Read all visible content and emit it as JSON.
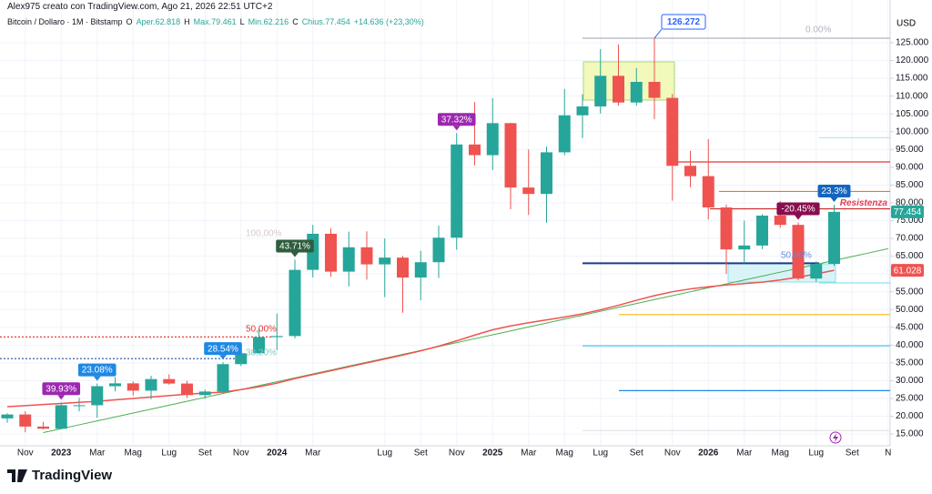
{
  "chart_data": {
    "type": "candlestick",
    "title": "Alex975 creato con TradingView.com, Ago 21, 2026 22:51 UTC+2",
    "symbol": "Bitcoin / Dollaro · 1M · Bitstamp",
    "legend_fields": [
      "O",
      "Aper.62.818",
      "H",
      "Max.79.461",
      "L",
      "Min.62.216",
      "C",
      "Chius.77.454",
      "+14.636 (+23,30%)"
    ],
    "currency": "USD",
    "brand": "TradingView",
    "categories": [
      null,
      "Nov",
      null,
      "2023",
      null,
      "Mar",
      null,
      "Mag",
      null,
      "Lug",
      null,
      "Set",
      null,
      "Nov",
      null,
      "2024",
      null,
      "Mar",
      null,
      null,
      null,
      "Lug",
      null,
      "Set",
      null,
      "Nov",
      null,
      "2025",
      null,
      "Mar",
      null,
      "Mag",
      null,
      "Lug",
      null,
      "Set",
      null,
      "Nov",
      null,
      "2026",
      null,
      "Mar",
      null,
      "Mag",
      null,
      "Lug",
      null,
      "Set",
      null,
      "N"
    ],
    "year_labels": [
      "2023",
      "2024",
      "2025",
      "2026"
    ],
    "open": [
      19400,
      20500,
      17100,
      16500,
      23100,
      23100,
      28450,
      29250,
      27200,
      30450,
      29200,
      25950,
      26950,
      34650,
      37700,
      42250,
      42550,
      61150,
      71300,
      60650,
      67500,
      62700,
      64600,
      59000,
      63300,
      70200,
      96400,
      93400,
      102400,
      84300,
      82500,
      94200,
      104600,
      107100,
      115700,
      108200,
      114000,
      109500,
      90400,
      87500,
      78700,
      66900,
      68000,
      76400,
      73800,
      58700,
      62818,
      null,
      null,
      null
    ],
    "high": [
      20800,
      21400,
      18400,
      23900,
      25200,
      29200,
      31000,
      29800,
      31400,
      31800,
      30000,
      27500,
      35200,
      38400,
      44700,
      48900,
      64000,
      73800,
      72800,
      71900,
      72000,
      70000,
      65100,
      66500,
      73600,
      99600,
      108300,
      109400,
      102500,
      95000,
      95800,
      112000,
      110500,
      123200,
      124500,
      117900,
      126272,
      110600,
      94600,
      97900,
      79500,
      75000,
      76800,
      80500,
      74500,
      63500,
      79461,
      null,
      null,
      null
    ],
    "low": [
      18200,
      15500,
      16300,
      16500,
      21400,
      19600,
      27000,
      25800,
      24800,
      28900,
      25200,
      24900,
      26500,
      34100,
      37600,
      38500,
      41900,
      59000,
      59200,
      56500,
      58400,
      53500,
      49100,
      52600,
      58900,
      66800,
      90500,
      89200,
      78200,
      76600,
      74400,
      93400,
      98200,
      105100,
      107300,
      107300,
      103500,
      80600,
      84400,
      75300,
      60000,
      63000,
      67000,
      73000,
      58200,
      57800,
      62216,
      null,
      null,
      null
    ],
    "close": [
      20500,
      17100,
      16500,
      23100,
      23100,
      28450,
      29250,
      27200,
      30450,
      29200,
      25950,
      26950,
      34650,
      37700,
      42250,
      42550,
      61150,
      71300,
      60650,
      67500,
      62700,
      64600,
      59000,
      63300,
      70200,
      96400,
      93400,
      102400,
      84300,
      82500,
      94200,
      104600,
      107100,
      115700,
      108200,
      114000,
      109500,
      90400,
      87500,
      78700,
      66900,
      68000,
      76400,
      73800,
      58700,
      62818,
      77454,
      null,
      null,
      null
    ],
    "up_color": "#26a69a",
    "down_color": "#ef5350",
    "ma": {
      "color": "#ef5350",
      "values": [
        22700,
        23000,
        23300,
        23600,
        23900,
        24200,
        24600,
        25000,
        25400,
        25800,
        26200,
        26500,
        26800,
        27500,
        28300,
        29300,
        30600,
        31700,
        32800,
        33900,
        35000,
        36100,
        37200,
        38400,
        39700,
        41200,
        42800,
        44300,
        45400,
        46300,
        47100,
        47900,
        48800,
        49900,
        51200,
        52600,
        53900,
        55000,
        55800,
        56400,
        56900,
        57300,
        57700,
        58300,
        59100,
        60000,
        61028,
        null,
        null,
        null
      ]
    },
    "trend": {
      "color": "#4caf50",
      "values": [
        null,
        null,
        15400,
        16500,
        17600,
        18700,
        19800,
        20900,
        22000,
        23100,
        24200,
        25300,
        26400,
        27500,
        28600,
        29700,
        30800,
        31900,
        33000,
        34100,
        35200,
        36300,
        37400,
        38500,
        39600,
        40700,
        41800,
        42900,
        44000,
        45100,
        46200,
        47300,
        48400,
        49500,
        50600,
        51700,
        52800,
        53900,
        55000,
        56100,
        57200,
        58300,
        59400,
        60500,
        61600,
        62700,
        63800,
        64900,
        66000,
        67100
      ]
    },
    "last_price_label": "77.454",
    "ma_label": "61.028",
    "high_label": "126.272",
    "annotations": [
      {
        "index": 3,
        "label": "39.93%",
        "color": "#9c27b0"
      },
      {
        "index": 5,
        "label": "23.08%",
        "color": "#1e88e5"
      },
      {
        "index": 12,
        "label": "28.54%",
        "color": "#1e88e5"
      },
      {
        "index": 16,
        "label": "43.71%",
        "color": "#2e5e3e"
      },
      {
        "index": 25,
        "label": "37.32%",
        "color": "#9c27b0"
      },
      {
        "index": 44,
        "label": "-20.45%",
        "color": "#880e4f"
      },
      {
        "index": 46,
        "label": "23.3%",
        "color": "#1565c0"
      }
    ],
    "levels": [
      {
        "value": 126272,
        "color": "#b2b5be"
      },
      {
        "value": 98300,
        "color": "#b2ebf2"
      },
      {
        "value": 91500,
        "color": "#e53935"
      },
      {
        "value": 83200,
        "color": "#f57c00"
      },
      {
        "value": 78300,
        "color": "#c62828"
      },
      {
        "value": 63000,
        "color": "#1a3a8f"
      },
      {
        "value": 57500,
        "color": "#80deea"
      },
      {
        "value": 48600,
        "color": "#fbc02d"
      },
      {
        "value": 39800,
        "color": "#4fc3f7"
      },
      {
        "value": 27200,
        "color": "#1e88e5"
      },
      {
        "value": 16000,
        "color": "#e0e0e0"
      },
      {
        "value": 42300,
        "color": "#e53935"
      },
      {
        "value": 36200,
        "color": "#1e4fa0"
      }
    ],
    "resistance_label": "Resistenza",
    "fib_labels": [
      {
        "text": "0.00%",
        "color": "#b2b5be"
      },
      {
        "text": "100,00%",
        "color": "#d7c9c9"
      },
      {
        "text": "50,00%",
        "color": "#e53935"
      },
      {
        "text": "38,20%",
        "color": "#80cbc4"
      },
      {
        "text": "50,00%",
        "color": "#5c8ee6"
      }
    ],
    "ylim": [
      11700,
      131900
    ],
    "yticks": [
      {
        "value": 15000,
        "label": "15.000"
      },
      {
        "value": 20000,
        "label": "20.000"
      },
      {
        "value": 25000,
        "label": "25.000"
      },
      {
        "value": 30000,
        "label": "30.000"
      },
      {
        "value": 35000,
        "label": "35.000"
      },
      {
        "value": 40000,
        "label": "40.000"
      },
      {
        "value": 45000,
        "label": "45.000"
      },
      {
        "value": 50000,
        "label": "50.000"
      },
      {
        "value": 55000,
        "label": "55.000"
      },
      {
        "value": 60000,
        "label": "60.000"
      },
      {
        "value": 65000,
        "label": "65.000"
      },
      {
        "value": 70000,
        "label": "70.000"
      },
      {
        "value": 75000,
        "label": "75.000"
      },
      {
        "value": 80000,
        "label": "80.000"
      },
      {
        "value": 85000,
        "label": "85.000"
      },
      {
        "value": 90000,
        "label": "90.000"
      },
      {
        "value": 95000,
        "label": "95.000"
      },
      {
        "value": 100000,
        "label": "100.000"
      },
      {
        "value": 105000,
        "label": "105.000"
      },
      {
        "value": 110000,
        "label": "110.000"
      },
      {
        "value": 115000,
        "label": "115.000"
      },
      {
        "value": 120000,
        "label": "120.000"
      },
      {
        "value": 125000,
        "label": "125.000"
      }
    ],
    "grid": true
  }
}
